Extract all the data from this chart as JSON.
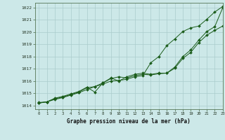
{
  "title": "Graphe pression niveau de la mer (hPa)",
  "background_color": "#cce8e8",
  "grid_color": "#aacccc",
  "line_color": "#1a5c1a",
  "xlim": [
    -0.5,
    23
  ],
  "ylim": [
    1013.7,
    1022.4
  ],
  "yticks": [
    1014,
    1015,
    1016,
    1017,
    1018,
    1019,
    1020,
    1021,
    1022
  ],
  "xticks": [
    0,
    1,
    2,
    3,
    4,
    5,
    6,
    7,
    8,
    9,
    10,
    11,
    12,
    13,
    14,
    15,
    16,
    17,
    18,
    19,
    20,
    21,
    22,
    23
  ],
  "x": [
    0,
    1,
    2,
    3,
    4,
    5,
    6,
    7,
    8,
    9,
    10,
    11,
    12,
    13,
    14,
    15,
    16,
    17,
    18,
    19,
    20,
    21,
    22,
    23
  ],
  "series1": [
    1014.2,
    1014.3,
    1014.5,
    1014.65,
    1014.85,
    1015.05,
    1015.3,
    1015.55,
    1015.75,
    1016.0,
    1016.05,
    1016.15,
    1016.35,
    1016.45,
    1017.5,
    1018.0,
    1018.9,
    1019.45,
    1020.05,
    1020.35,
    1020.5,
    1021.05,
    1021.65,
    1022.1
  ],
  "series2": [
    1014.2,
    1014.3,
    1014.55,
    1014.7,
    1014.9,
    1015.1,
    1015.45,
    1015.55,
    1015.85,
    1016.2,
    1016.35,
    1016.25,
    1016.45,
    1016.55,
    1016.5,
    1016.6,
    1016.65,
    1017.05,
    1017.85,
    1018.35,
    1019.15,
    1019.75,
    1020.15,
    1020.5
  ],
  "series3": [
    1014.25,
    1014.3,
    1014.6,
    1014.75,
    1014.95,
    1015.15,
    1015.5,
    1015.1,
    1015.85,
    1016.25,
    1016.0,
    1016.35,
    1016.55,
    1016.65,
    1016.55,
    1016.65,
    1016.65,
    1017.15,
    1018.0,
    1018.55,
    1019.35,
    1020.05,
    1020.45,
    1022.0
  ]
}
